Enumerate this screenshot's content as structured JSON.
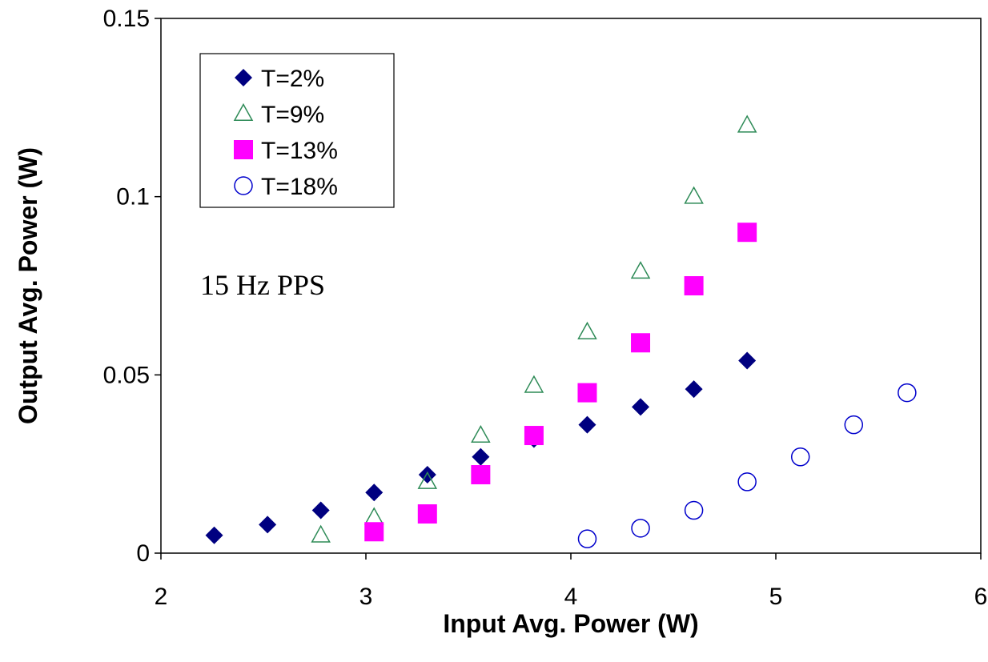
{
  "chart_data": {
    "type": "scatter",
    "xlabel": "Input Avg. Power (W)",
    "ylabel": "Output Avg. Power (W)",
    "xlim": [
      2,
      6
    ],
    "ylim": [
      0,
      0.15
    ],
    "x_ticks": [
      "2",
      "3",
      "4",
      "5",
      "6"
    ],
    "y_ticks": [
      "0",
      "0.05",
      "0.1",
      "0.15"
    ],
    "grid": false,
    "legend_position": "top-left",
    "annotation": "15 Hz PPS",
    "series": [
      {
        "name": "T=2%",
        "marker": "diamond",
        "color": "#000080",
        "points": [
          [
            2.26,
            0.005
          ],
          [
            2.52,
            0.008
          ],
          [
            2.78,
            0.012
          ],
          [
            3.04,
            0.017
          ],
          [
            3.3,
            0.022
          ],
          [
            3.56,
            0.027
          ],
          [
            3.82,
            0.032
          ],
          [
            4.08,
            0.036
          ],
          [
            4.34,
            0.041
          ],
          [
            4.6,
            0.046
          ],
          [
            4.86,
            0.054
          ]
        ]
      },
      {
        "name": "T=9%",
        "marker": "triangle-open",
        "color": "#2e8b57",
        "points": [
          [
            2.78,
            0.005
          ],
          [
            3.04,
            0.01
          ],
          [
            3.3,
            0.02
          ],
          [
            3.56,
            0.033
          ],
          [
            3.82,
            0.047
          ],
          [
            4.08,
            0.062
          ],
          [
            4.34,
            0.079
          ],
          [
            4.6,
            0.1
          ],
          [
            4.86,
            0.12
          ]
        ]
      },
      {
        "name": "T=13%",
        "marker": "square",
        "color": "#ff00ff",
        "points": [
          [
            3.04,
            0.006
          ],
          [
            3.3,
            0.011
          ],
          [
            3.56,
            0.022
          ],
          [
            3.82,
            0.033
          ],
          [
            4.08,
            0.045
          ],
          [
            4.34,
            0.059
          ],
          [
            4.6,
            0.075
          ],
          [
            4.86,
            0.09
          ]
        ]
      },
      {
        "name": "T=18%",
        "marker": "circle-open",
        "color": "#0000cc",
        "points": [
          [
            4.08,
            0.004
          ],
          [
            4.34,
            0.007
          ],
          [
            4.6,
            0.012
          ],
          [
            4.86,
            0.02
          ],
          [
            5.12,
            0.027
          ],
          [
            5.38,
            0.036
          ],
          [
            5.64,
            0.045
          ]
        ]
      }
    ]
  }
}
